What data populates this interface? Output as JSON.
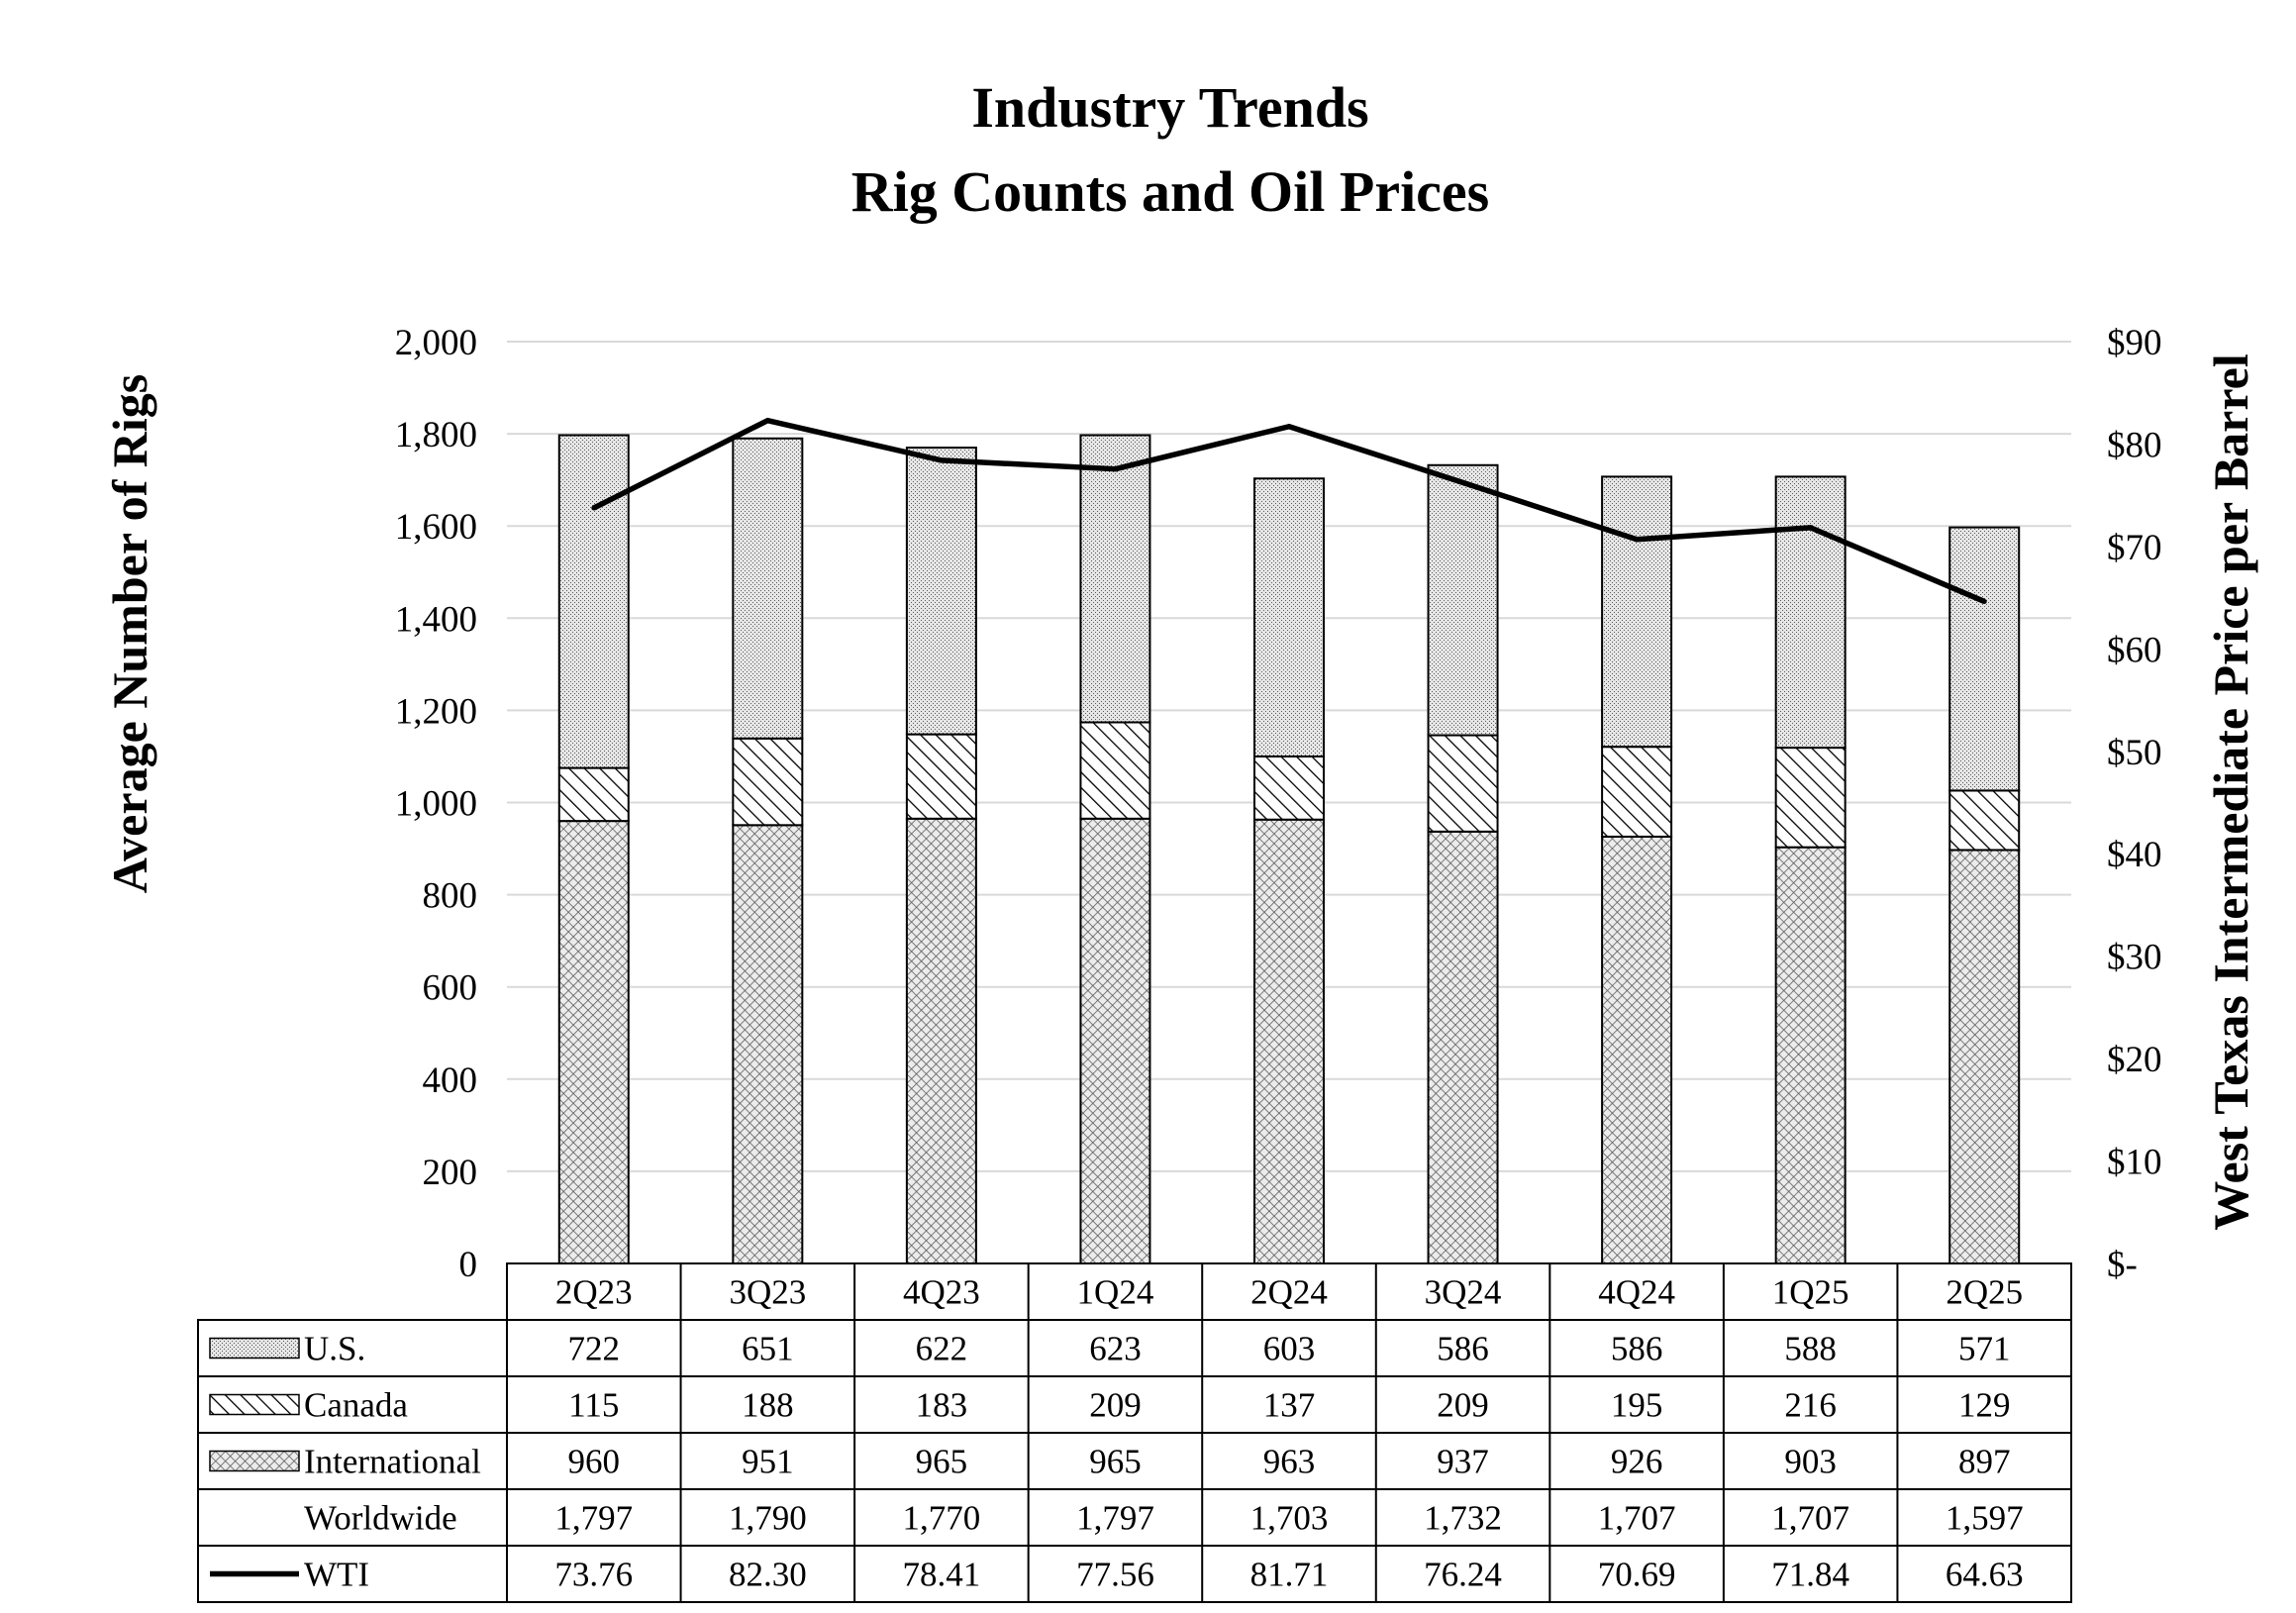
{
  "chart_data": {
    "type": "bar",
    "stacked": true,
    "title": [
      "Industry Trends",
      "Rig Counts and Oil Prices"
    ],
    "ylabel": "Average Number of Rigs",
    "y2label": "West Texas Intermediate Price per Barrel",
    "ylim": [
      0,
      2000
    ],
    "y2lim": [
      0,
      90
    ],
    "yticks": [
      "0",
      "200",
      "400",
      "600",
      "800",
      "1,000",
      "1,200",
      "1,400",
      "1,600",
      "1,800",
      "2,000"
    ],
    "y2ticks": [
      "$-",
      "$10",
      "$20",
      "$30",
      "$40",
      "$50",
      "$60",
      "$70",
      "$80",
      "$90"
    ],
    "grid": true,
    "categories": [
      "2Q23",
      "3Q23",
      "4Q23",
      "1Q24",
      "2Q24",
      "3Q24",
      "4Q24",
      "1Q25",
      "2Q25"
    ],
    "series": [
      {
        "name": "U.S.",
        "kind": "bar",
        "pattern": "dots",
        "values": [
          722,
          651,
          622,
          623,
          603,
          586,
          586,
          588,
          571
        ],
        "labels": [
          "722",
          "651",
          "622",
          "623",
          "603",
          "586",
          "586",
          "588",
          "571"
        ]
      },
      {
        "name": "Canada",
        "kind": "bar",
        "pattern": "hatch",
        "values": [
          115,
          188,
          183,
          209,
          137,
          209,
          195,
          216,
          129
        ],
        "labels": [
          "115",
          "188",
          "183",
          "209",
          "137",
          "209",
          "195",
          "216",
          "129"
        ]
      },
      {
        "name": "International",
        "kind": "bar",
        "pattern": "crosshatch",
        "values": [
          960,
          951,
          965,
          965,
          963,
          937,
          926,
          903,
          897
        ],
        "labels": [
          "960",
          "951",
          "965",
          "965",
          "963",
          "937",
          "926",
          "903",
          "897"
        ]
      },
      {
        "name": "Worldwide",
        "kind": "total",
        "values": [
          1797,
          1790,
          1770,
          1797,
          1703,
          1732,
          1707,
          1707,
          1597
        ],
        "labels": [
          "1,797",
          "1,790",
          "1,770",
          "1,797",
          "1,703",
          "1,732",
          "1,707",
          "1,707",
          "1,597"
        ]
      },
      {
        "name": "WTI",
        "kind": "line",
        "axis": "right",
        "values": [
          73.76,
          82.3,
          78.41,
          77.56,
          81.71,
          76.24,
          70.69,
          71.84,
          64.63
        ],
        "labels": [
          "73.76",
          "82.30",
          "78.41",
          "77.56",
          "81.71",
          "76.24",
          "70.69",
          "71.84",
          "64.63"
        ]
      }
    ]
  },
  "colors": {
    "bar_fill": "#d9d9d9",
    "outline": "#000000",
    "grid": "#d9d9d9",
    "line": "#000000"
  }
}
